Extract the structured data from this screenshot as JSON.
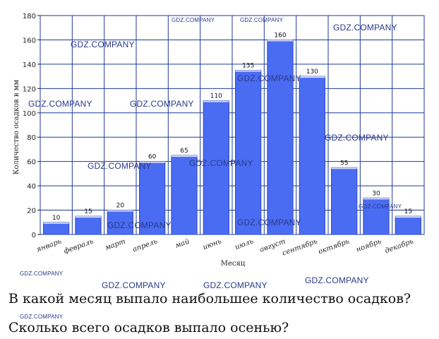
{
  "chart_data": {
    "type": "bar",
    "categories": [
      "январь",
      "февраль",
      "март",
      "апрель",
      "май",
      "июнь",
      "июль",
      "август",
      "сентябрь",
      "октябрь",
      "ноябрь",
      "декабрь"
    ],
    "values": [
      10,
      15,
      20,
      60,
      65,
      110,
      135,
      160,
      130,
      55,
      30,
      15
    ],
    "xlabel": "Месяц",
    "ylabel": "Количество осадков в мм",
    "ylim": [
      0,
      180
    ],
    "yticks": [
      0,
      20,
      40,
      60,
      80,
      100,
      120,
      140,
      160,
      180
    ],
    "grid": true,
    "bar_color": "#4a6cf2",
    "grid_color": "#1e3a9a"
  },
  "watermark": "GDZ.COMPANY",
  "questions": [
    "В какой месяц выпало наибольшее количество осадков?",
    "Сколько всего осадков выпало осенью?"
  ]
}
